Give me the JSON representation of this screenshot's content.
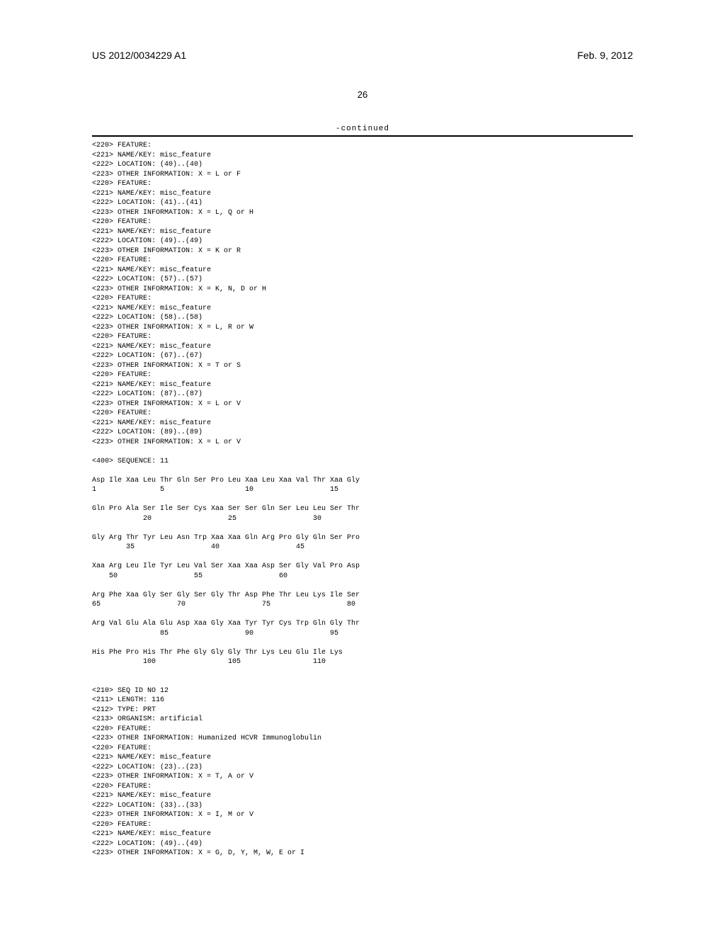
{
  "header": {
    "left": "US 2012/0034229 A1",
    "right": "Feb. 9, 2012"
  },
  "page_number": "26",
  "continued_label": "-continued",
  "features": [
    {
      "lines": [
        "<220> FEATURE:",
        "<221> NAME/KEY: misc_feature",
        "<222> LOCATION: (40)..(40)",
        "<223> OTHER INFORMATION: X = L or F"
      ]
    },
    {
      "lines": [
        "<220> FEATURE:",
        "<221> NAME/KEY: misc_feature",
        "<222> LOCATION: (41)..(41)",
        "<223> OTHER INFORMATION: X = L, Q or H"
      ]
    },
    {
      "lines": [
        "<220> FEATURE:",
        "<221> NAME/KEY: misc_feature",
        "<222> LOCATION: (49)..(49)",
        "<223> OTHER INFORMATION: X = K or R"
      ]
    },
    {
      "lines": [
        "<220> FEATURE:",
        "<221> NAME/KEY: misc_feature",
        "<222> LOCATION: (57)..(57)",
        "<223> OTHER INFORMATION: X = K, N, D or H"
      ]
    },
    {
      "lines": [
        "<220> FEATURE:",
        "<221> NAME/KEY: misc_feature",
        "<222> LOCATION: (58)..(58)",
        "<223> OTHER INFORMATION: X = L, R or W"
      ]
    },
    {
      "lines": [
        "<220> FEATURE:",
        "<221> NAME/KEY: misc_feature",
        "<222> LOCATION: (67)..(67)",
        "<223> OTHER INFORMATION: X = T or S"
      ]
    },
    {
      "lines": [
        "<220> FEATURE:",
        "<221> NAME/KEY: misc_feature",
        "<222> LOCATION: (87)..(87)",
        "<223> OTHER INFORMATION: X = L or V"
      ]
    },
    {
      "lines": [
        "<220> FEATURE:",
        "<221> NAME/KEY: misc_feature",
        "<222> LOCATION: (89)..(89)",
        "<223> OTHER INFORMATION: X = L or V"
      ]
    }
  ],
  "seq_header": "<400> SEQUENCE: 11",
  "sequence": [
    {
      "aa": "Asp Ile Xaa Leu Thr Gln Ser Pro Leu Xaa Leu Xaa Val Thr Xaa Gly",
      "nums": "1               5                   10                  15"
    },
    {
      "aa": "Gln Pro Ala Ser Ile Ser Cys Xaa Ser Ser Gln Ser Leu Leu Ser Thr",
      "nums": "            20                  25                  30"
    },
    {
      "aa": "Gly Arg Thr Tyr Leu Asn Trp Xaa Xaa Gln Arg Pro Gly Gln Ser Pro",
      "nums": "        35                  40                  45"
    },
    {
      "aa": "Xaa Arg Leu Ile Tyr Leu Val Ser Xaa Xaa Asp Ser Gly Val Pro Asp",
      "nums": "    50                  55                  60"
    },
    {
      "aa": "Arg Phe Xaa Gly Ser Gly Ser Gly Thr Asp Phe Thr Leu Lys Ile Ser",
      "nums": "65                  70                  75                  80"
    },
    {
      "aa": "Arg Val Glu Ala Glu Asp Xaa Gly Xaa Tyr Tyr Cys Trp Gln Gly Thr",
      "nums": "                85                  90                  95"
    },
    {
      "aa": "His Phe Pro His Thr Phe Gly Gly Gly Thr Lys Leu Glu Ile Lys",
      "nums": "            100                 105                 110"
    }
  ],
  "seq12_header": [
    "<210> SEQ ID NO 12",
    "<211> LENGTH: 116",
    "<212> TYPE: PRT",
    "<213> ORGANISM: artificial",
    "<220> FEATURE:",
    "<223> OTHER INFORMATION: Humanized HCVR Immunoglobulin"
  ],
  "features2": [
    {
      "lines": [
        "<220> FEATURE:",
        "<221> NAME/KEY: misc_feature",
        "<222> LOCATION: (23)..(23)",
        "<223> OTHER INFORMATION: X = T, A or V"
      ]
    },
    {
      "lines": [
        "<220> FEATURE:",
        "<221> NAME/KEY: misc_feature",
        "<222> LOCATION: (33)..(33)",
        "<223> OTHER INFORMATION: X = I, M or V"
      ]
    },
    {
      "lines": [
        "<220> FEATURE:",
        "<221> NAME/KEY: misc_feature",
        "<222> LOCATION: (49)..(49)",
        "<223> OTHER INFORMATION: X = G, D, Y, M, W, E or I"
      ]
    }
  ]
}
